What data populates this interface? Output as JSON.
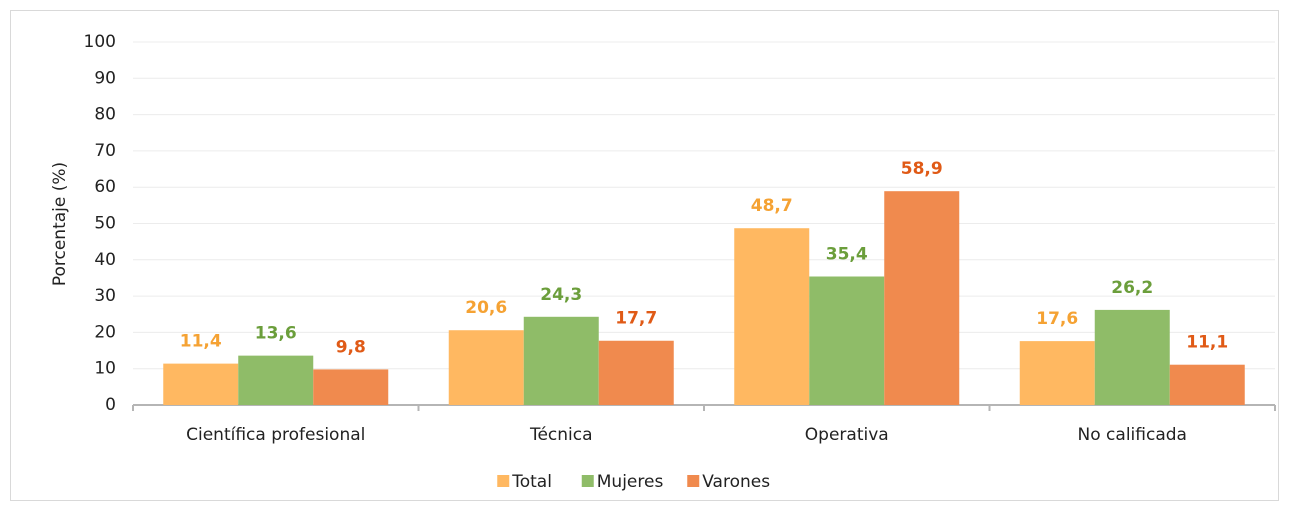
{
  "chart_data": {
    "type": "bar",
    "ylabel": "Porcentaje (%)",
    "categories": [
      "Científica profesional",
      "Técnica",
      "Operativa",
      "No calificada"
    ],
    "series": [
      {
        "name": "Total",
        "color": "#ffb861",
        "label_color": "#f5a233",
        "values": [
          11.4,
          20.6,
          48.7,
          17.6
        ],
        "value_labels": [
          "11,4",
          "20,6",
          "48,7",
          "17,6"
        ]
      },
      {
        "name": "Mujeres",
        "color": "#8fbc68",
        "label_color": "#6b9e3b",
        "values": [
          13.6,
          24.3,
          35.4,
          26.2
        ],
        "value_labels": [
          "13,6",
          "24,3",
          "35,4",
          "26,2"
        ]
      },
      {
        "name": "Varones",
        "color": "#f08a4e",
        "label_color": "#e05a16",
        "values": [
          9.8,
          17.7,
          58.9,
          11.1
        ],
        "value_labels": [
          "9,8",
          "17,7",
          "58,9",
          "11,1"
        ]
      }
    ],
    "ylim": [
      0,
      100
    ],
    "yticks": [
      0,
      10,
      20,
      30,
      40,
      50,
      60,
      70,
      80,
      90,
      100
    ],
    "grid": true,
    "legend": "bottom"
  }
}
